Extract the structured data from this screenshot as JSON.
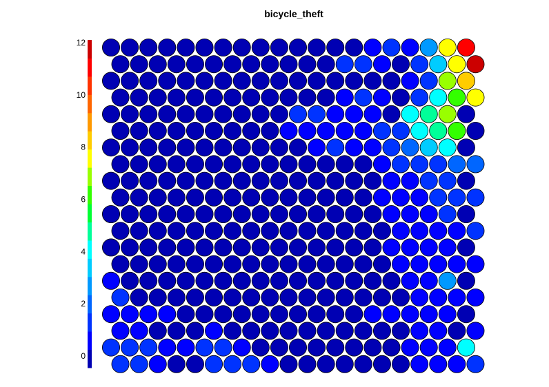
{
  "chart_data": {
    "type": "heatmap",
    "layout": "hexagonal",
    "title": "bicycle_theft",
    "rows": 20,
    "cols": 20,
    "zlim": [
      0,
      12
    ],
    "colorbar": {
      "ticks": [
        0,
        2,
        4,
        6,
        8,
        10,
        12
      ],
      "colors": [
        "#0000b3",
        "#0000ff",
        "#0033ff",
        "#0066ff",
        "#0099ff",
        "#00ccff",
        "#00ffff",
        "#00ff99",
        "#00ff33",
        "#33ff00",
        "#99ff00",
        "#ffff00",
        "#ffcc00",
        "#ff9900",
        "#ff6600",
        "#ff3300",
        "#ff0000",
        "#cc0000"
      ]
    },
    "values": [
      [
        0.4,
        0.4,
        0.4,
        0.4,
        0.4,
        0.4,
        0.4,
        0.4,
        0.4,
        0.4,
        0.4,
        0.4,
        0.4,
        0.4,
        1.0,
        1.5,
        0.8,
        3.0,
        7.5,
        11.0
      ],
      [
        0.4,
        0.4,
        0.4,
        0.4,
        0.4,
        0.4,
        0.4,
        0.4,
        0.4,
        0.4,
        0.4,
        0.4,
        1.5,
        1.8,
        1.2,
        0.6,
        1.8,
        3.5,
        7.5,
        12.0
      ],
      [
        0.4,
        0.4,
        0.4,
        0.4,
        0.4,
        0.4,
        0.4,
        0.4,
        0.4,
        0.4,
        0.4,
        0.4,
        0.4,
        0.4,
        0.4,
        0.4,
        1.2,
        1.8,
        7.0,
        8.5
      ],
      [
        0.4,
        0.4,
        0.4,
        0.4,
        0.4,
        0.4,
        0.4,
        0.4,
        0.4,
        0.4,
        0.4,
        0.4,
        1.2,
        1.5,
        1.2,
        0.6,
        1.5,
        4.0,
        6.5,
        7.5
      ],
      [
        0.4,
        0.4,
        0.4,
        0.4,
        0.4,
        0.4,
        0.4,
        0.4,
        0.4,
        0.4,
        1.5,
        1.5,
        0.8,
        0.8,
        1.2,
        0.6,
        4.0,
        5.0,
        7.0,
        0.6
      ],
      [
        0.4,
        0.4,
        0.4,
        0.4,
        0.4,
        0.4,
        0.4,
        0.4,
        0.4,
        1.0,
        0.8,
        0.8,
        0.8,
        1.0,
        1.5,
        1.8,
        4.0,
        5.0,
        6.0,
        0.6
      ],
      [
        0.4,
        0.4,
        0.4,
        0.4,
        0.4,
        0.4,
        0.4,
        0.4,
        0.4,
        0.4,
        0.4,
        1.2,
        1.5,
        0.8,
        1.2,
        1.8,
        2.2,
        3.5,
        4.0,
        0.6
      ],
      [
        0.4,
        0.4,
        0.4,
        0.4,
        0.4,
        0.4,
        0.4,
        0.4,
        0.4,
        0.4,
        0.4,
        0.4,
        0.4,
        0.4,
        1.2,
        1.5,
        1.8,
        1.8,
        2.2,
        2.5
      ],
      [
        0.4,
        0.4,
        0.4,
        0.4,
        0.4,
        0.4,
        0.4,
        0.4,
        0.4,
        0.4,
        0.4,
        0.4,
        0.4,
        0.4,
        0.4,
        1.2,
        1.2,
        1.5,
        1.8,
        0.6
      ],
      [
        0.4,
        0.4,
        0.4,
        0.4,
        0.4,
        0.4,
        0.4,
        0.4,
        0.4,
        0.4,
        0.4,
        0.4,
        0.4,
        0.4,
        1.2,
        1.2,
        1.2,
        1.5,
        1.8,
        1.8
      ],
      [
        0.4,
        0.4,
        0.4,
        0.4,
        0.4,
        0.4,
        0.4,
        0.4,
        0.4,
        0.4,
        0.4,
        0.4,
        0.4,
        0.4,
        0.4,
        1.2,
        1.2,
        1.2,
        1.8,
        0.6
      ],
      [
        0.4,
        0.4,
        0.4,
        0.4,
        0.4,
        0.4,
        0.4,
        0.4,
        0.4,
        0.4,
        0.4,
        0.4,
        0.4,
        0.4,
        0.4,
        1.0,
        1.2,
        1.2,
        1.2,
        1.5
      ],
      [
        0.4,
        0.4,
        0.4,
        0.4,
        0.4,
        0.4,
        0.4,
        0.4,
        0.4,
        0.4,
        0.4,
        0.4,
        0.4,
        0.4,
        0.4,
        0.8,
        1.0,
        1.0,
        0.8,
        0.6
      ],
      [
        0.4,
        0.4,
        0.4,
        0.4,
        0.4,
        0.4,
        0.4,
        0.4,
        0.4,
        0.4,
        0.4,
        0.4,
        0.4,
        0.4,
        0.4,
        0.8,
        1.0,
        1.0,
        1.2,
        1.2
      ],
      [
        1.2,
        0.4,
        0.4,
        0.4,
        0.4,
        0.4,
        0.4,
        0.4,
        0.4,
        0.4,
        0.4,
        0.4,
        0.4,
        0.4,
        0.4,
        0.4,
        0.8,
        1.0,
        3.0,
        0.6
      ],
      [
        1.5,
        0.4,
        0.4,
        0.4,
        0.4,
        0.4,
        0.4,
        0.4,
        0.4,
        0.4,
        0.4,
        0.4,
        0.4,
        0.4,
        0.4,
        0.4,
        0.8,
        1.0,
        1.2,
        1.2
      ],
      [
        1.2,
        1.0,
        0.8,
        0.8,
        0.4,
        0.4,
        0.4,
        0.4,
        0.4,
        0.4,
        0.4,
        0.4,
        0.4,
        0.4,
        1.2,
        0.8,
        0.8,
        1.0,
        1.0,
        0.6
      ],
      [
        1.2,
        1.2,
        0.4,
        0.4,
        0.4,
        1.2,
        0.4,
        0.4,
        0.4,
        0.4,
        0.4,
        0.4,
        0.4,
        0.4,
        0.4,
        0.4,
        1.0,
        0.8,
        0.4,
        1.2
      ],
      [
        1.8,
        1.8,
        1.5,
        0.8,
        0.8,
        1.5,
        1.8,
        1.2,
        0.4,
        0.4,
        0.4,
        0.4,
        0.4,
        0.4,
        0.4,
        0.4,
        0.8,
        0.8,
        1.0,
        4.0
      ],
      [
        1.8,
        1.5,
        0.8,
        0.4,
        0.4,
        1.5,
        1.8,
        1.5,
        1.2,
        0.4,
        0.4,
        0.4,
        0.4,
        0.4,
        0.4,
        0.4,
        1.2,
        1.2,
        1.0,
        1.5
      ]
    ]
  }
}
